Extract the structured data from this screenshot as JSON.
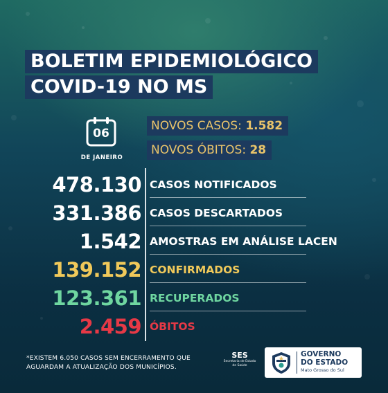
{
  "title": {
    "line1": "BOLETIM EPIDEMIOLÓGICO",
    "line2": "COVID-19 NO MS"
  },
  "date": {
    "day": "06",
    "month": "DE JANEIRO"
  },
  "novos": {
    "casos_label": "NOVOS CASOS:",
    "casos_value": "1.582",
    "obitos_label": "NOVOS ÓBITOS:",
    "obitos_value": "28"
  },
  "stats": [
    {
      "value": "478.130",
      "label": "CASOS NOTIFICADOS",
      "color": "#ffffff"
    },
    {
      "value": "331.386",
      "label": "CASOS DESCARTADOS",
      "color": "#ffffff"
    },
    {
      "value": "1.542",
      "label": "AMOSTRAS EM ANÁLISE LACEN",
      "color": "#ffffff"
    },
    {
      "value": "139.152",
      "label": "CONFIRMADOS",
      "color": "#f0c95a"
    },
    {
      "value": "123.361",
      "label": "RECUPERADOS",
      "color": "#6fd6a0"
    },
    {
      "value": "2.459",
      "label": "ÓBITOS",
      "color": "#e63946"
    }
  ],
  "footnote": {
    "line1": "*EXISTEM 6.050 CASOS SEM ENCERRAMENTO QUE",
    "line2": "AGUARDAM A ATUALIZAÇÃO DOS MUNICÍPIOS."
  },
  "ses": {
    "name": "SES",
    "sub1": "Secretaria de Estado",
    "sub2": "de Saúde"
  },
  "gov": {
    "line1": "GOVERNO",
    "line2": "DO ESTADO",
    "line3": "Mato Grosso do Sul"
  },
  "icons": {
    "calendar": "calendar-icon",
    "coat_of_arms": "coat-of-arms-icon"
  }
}
